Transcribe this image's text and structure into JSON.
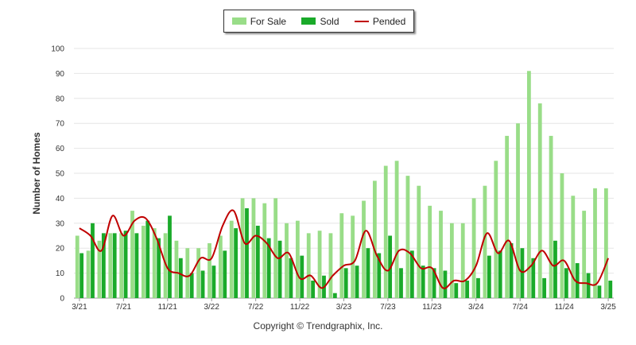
{
  "legend": {
    "for_sale_label": "For Sale",
    "sold_label": "Sold",
    "pended_label": "Pended"
  },
  "footer": "Copyright © Trendgraphix, Inc.",
  "chart_data": {
    "type": "bar",
    "ylabel": "Number of Homes",
    "ylim": [
      0,
      100
    ],
    "yticks": [
      0,
      10,
      20,
      30,
      40,
      50,
      60,
      70,
      80,
      90,
      100
    ],
    "xtick_labels": [
      "3/21",
      "7/21",
      "11/21",
      "3/22",
      "7/22",
      "11/22",
      "3/23",
      "7/23",
      "11/23",
      "3/24",
      "7/24",
      "11/24",
      "3/25"
    ],
    "grid": true,
    "legend_position": "top-center",
    "colors": {
      "for_sale": "#99dd88",
      "sold": "#1aaa2a",
      "pended": "#c00000"
    },
    "categories": [
      "3/21",
      "4/21",
      "5/21",
      "6/21",
      "7/21",
      "8/21",
      "9/21",
      "10/21",
      "11/21",
      "12/21",
      "1/22",
      "2/22",
      "3/22",
      "4/22",
      "5/22",
      "6/22",
      "7/22",
      "8/22",
      "9/22",
      "10/22",
      "11/22",
      "12/22",
      "1/23",
      "2/23",
      "3/23",
      "4/23",
      "5/23",
      "6/23",
      "7/23",
      "8/23",
      "9/23",
      "10/23",
      "11/23",
      "12/23",
      "1/24",
      "2/24",
      "3/24",
      "4/24",
      "5/24",
      "6/24",
      "7/24",
      "8/24",
      "9/24",
      "10/24",
      "11/24",
      "12/24",
      "1/25",
      "2/25",
      "3/25"
    ],
    "series": [
      {
        "name": "For Sale",
        "kind": "bar",
        "values": [
          25,
          19,
          23,
          26,
          26,
          35,
          29,
          28,
          26,
          23,
          20,
          20,
          22,
          25,
          31,
          40,
          40,
          38,
          40,
          30,
          31,
          26,
          27,
          26,
          34,
          33,
          39,
          47,
          53,
          55,
          49,
          45,
          37,
          35,
          30,
          30,
          40,
          45,
          55,
          65,
          70,
          91,
          78,
          65,
          50,
          41,
          35,
          44,
          44
        ]
      },
      {
        "name": "Sold",
        "kind": "bar",
        "values": [
          18,
          30,
          26,
          26,
          27,
          26,
          31,
          24,
          33,
          16,
          10,
          11,
          13,
          19,
          28,
          36,
          29,
          24,
          23,
          16,
          17,
          7,
          9,
          2,
          12,
          13,
          20,
          18,
          25,
          12,
          19,
          13,
          12,
          11,
          6,
          7,
          8,
          17,
          19,
          22,
          20,
          16,
          8,
          23,
          12,
          14,
          10,
          5,
          7
        ]
      },
      {
        "name": "Pended",
        "kind": "line",
        "values": [
          28,
          25,
          19,
          33,
          25,
          31,
          32,
          24,
          12,
          10,
          9,
          16,
          16,
          29,
          35,
          22,
          25,
          22,
          16,
          18,
          8,
          9,
          4,
          9,
          13,
          15,
          27,
          17,
          11,
          19,
          18,
          12,
          12,
          4,
          7,
          7,
          13,
          26,
          18,
          23,
          11,
          13,
          19,
          13,
          15,
          7,
          6,
          6,
          16
        ]
      }
    ]
  }
}
